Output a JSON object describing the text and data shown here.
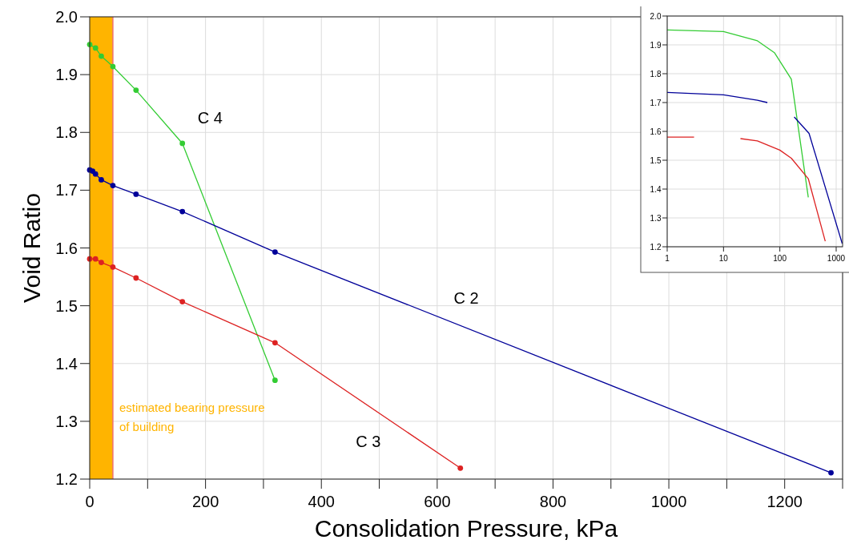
{
  "chart_data": [
    {
      "type": "line",
      "xlabel": "Consolidation Pressure, kPa",
      "ylabel": "Void Ratio",
      "xlim": [
        0,
        1300
      ],
      "ylim": [
        1.2,
        2.0
      ],
      "xticks": [
        0,
        {
          "value": 100,
          "label": null
        },
        200,
        {
          "value": 300,
          "label": null
        },
        400,
        {
          "value": 500,
          "label": null
        },
        600,
        {
          "value": 700,
          "label": null
        },
        800,
        {
          "value": 900,
          "label": null
        },
        1000,
        {
          "value": 1100,
          "label": null
        },
        1200,
        {
          "value": 1300,
          "label": null
        }
      ],
      "yticks": [
        {
          "value": 1.2,
          "label": "1.2"
        },
        {
          "value": 1.3,
          "label": "1.3"
        },
        {
          "value": 1.4,
          "label": "1.4"
        },
        {
          "value": 1.5,
          "label": "1.5"
        },
        {
          "value": 1.6,
          "label": "1.6"
        },
        {
          "value": 1.7,
          "label": "1.7"
        },
        {
          "value": 1.8,
          "label": "1.8"
        },
        {
          "value": 1.9,
          "label": "1.9"
        },
        {
          "value": 2.0,
          "label": "2.0"
        }
      ],
      "grid": true,
      "marker": "circle",
      "bands": [
        {
          "axis": "x",
          "from": 0,
          "to": 40,
          "label": "estimated bearing pressure of building",
          "color": "#ffb400"
        }
      ],
      "ref_lines": [
        {
          "axis": "x",
          "value": 40,
          "color": "#f07070"
        }
      ],
      "series": [
        {
          "color": "#33cc33",
          "x": [
            0,
            10,
            20,
            40,
            80,
            160,
            320
          ],
          "values": [
            1.952,
            1.946,
            1.932,
            1.914,
            1.873,
            1.781,
            1.371
          ]
        },
        {
          "color": "#000099",
          "x": [
            0,
            5,
            10,
            20,
            40,
            80,
            160,
            320,
            1280
          ],
          "values": [
            1.735,
            1.733,
            1.728,
            1.718,
            1.708,
            1.693,
            1.663,
            1.593,
            1.211
          ]
        },
        {
          "color": "#dd2222",
          "x": [
            0,
            10,
            20,
            40,
            80,
            160,
            320,
            640
          ],
          "values": [
            1.581,
            1.581,
            1.575,
            1.567,
            1.548,
            1.507,
            1.436,
            1.219
          ]
        }
      ],
      "annotations": [
        "C 4",
        "C 2",
        "C 3"
      ]
    },
    {
      "type": "line",
      "log": "x",
      "xlim": [
        1,
        1300
      ],
      "ylim": [
        1.2,
        2.0
      ],
      "xticks": [
        1,
        10,
        100,
        1000
      ],
      "yticks": [
        {
          "value": 1.2,
          "label": "1.2"
        },
        {
          "value": 1.3,
          "label": "1.3"
        },
        {
          "value": 1.4,
          "label": "1.4"
        },
        {
          "value": 1.5,
          "label": "1.5"
        },
        {
          "value": 1.6,
          "label": "1.6"
        },
        {
          "value": 1.7,
          "label": "1.7"
        },
        {
          "value": 1.8,
          "label": "1.8"
        },
        {
          "value": 1.9,
          "label": "1.9"
        },
        {
          "value": 2.0,
          "label": "2.0"
        }
      ],
      "grid": true,
      "series": [
        {
          "color": "#33cc33",
          "x": [
            1,
            10,
            40,
            80,
            160,
            320
          ],
          "values": [
            1.952,
            1.946,
            1.914,
            1.873,
            1.781,
            1.371
          ]
        },
        {
          "color": "#000099",
          "x": [
            1,
            10,
            40,
            60,
            100,
            180,
            330,
            1280
          ],
          "values": [
            1.735,
            1.727,
            1.708,
            1.7,
            null,
            1.65,
            1.593,
            1.211
          ]
        },
        {
          "color": "#dd2222",
          "x": [
            1,
            3,
            10,
            20,
            40,
            100,
            160,
            320,
            640
          ],
          "values": [
            1.58,
            1.58,
            null,
            1.575,
            1.567,
            1.535,
            1.507,
            1.436,
            1.219
          ]
        }
      ]
    }
  ]
}
